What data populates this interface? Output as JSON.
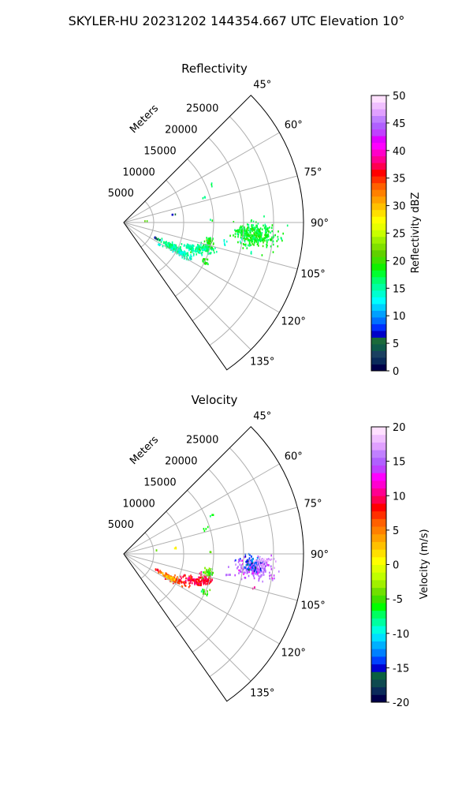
{
  "figure": {
    "suptitle": "SKYLER-HU  20231202  144354.667 UTC Elevation 10°"
  },
  "chart_data": [
    {
      "type": "polar-ppi",
      "title": "Reflectivity",
      "radial_label": "Meters",
      "radial_ticks": [
        "5000",
        "10000",
        "15000",
        "20000",
        "25000"
      ],
      "radial_tick_values": [
        5000,
        10000,
        15000,
        20000,
        25000
      ],
      "rmax": 30000,
      "theta_range_deg": [
        45,
        145
      ],
      "theta_ticks": [
        "45°",
        "60°",
        "75°",
        "90°",
        "105°",
        "120°",
        "135°"
      ],
      "theta_tick_values": [
        45,
        60,
        75,
        90,
        105,
        120,
        135
      ],
      "grid": true,
      "colorbar": {
        "label": "Reflectivity dBZ",
        "min": 0,
        "max": 50,
        "ticks": [
          0,
          5,
          10,
          15,
          20,
          25,
          30,
          35,
          40,
          45,
          50
        ],
        "tick_labels": [
          "0",
          "5",
          "10",
          "15",
          "20",
          "25",
          "30",
          "35",
          "40",
          "45",
          "50"
        ],
        "colors": [
          "#00004a",
          "#0a2a5a",
          "#1a4060",
          "#0e5a4a",
          "#1a6a3a",
          "#0000c8",
          "#0030ff",
          "#0070ff",
          "#00a0ff",
          "#00d0ff",
          "#00ffff",
          "#00ffd0",
          "#00ffa0",
          "#00ff70",
          "#00ff30",
          "#10f000",
          "#40e000",
          "#60d000",
          "#80e000",
          "#a0f000",
          "#c8ff00",
          "#e8ff00",
          "#ffff00",
          "#ffe000",
          "#ffc000",
          "#ffa000",
          "#ff8000",
          "#ff6000",
          "#ff3000",
          "#ff0000",
          "#ff0050",
          "#ff0090",
          "#ff00c8",
          "#ff00ff",
          "#e000ff",
          "#c040ff",
          "#b060ff",
          "#c080ff",
          "#e0a0ff",
          "#f0c0ff",
          "#ffe0ff"
        ]
      },
      "echoes": [
        {
          "theta": 95,
          "r": 22000,
          "spread_r": 1700,
          "spread_t": 2.4,
          "count": 340,
          "value": 18
        },
        {
          "theta": 94,
          "r": 19500,
          "spread_r": 600,
          "spread_t": 1.0,
          "count": 25,
          "value": 18
        },
        {
          "theta": 116,
          "r": 9000,
          "spread_r": 1100,
          "spread_t": 1.7,
          "count": 150,
          "value": 16
        },
        {
          "theta": 118,
          "r": 11000,
          "spread_r": 800,
          "spread_t": 1.2,
          "count": 70,
          "value": 14
        },
        {
          "theta": 110,
          "r": 12200,
          "spread_r": 900,
          "spread_t": 1.4,
          "count": 90,
          "value": 15
        },
        {
          "theta": 107,
          "r": 14200,
          "spread_r": 700,
          "spread_t": 1.3,
          "count": 75,
          "value": 16
        },
        {
          "theta": 102,
          "r": 14500,
          "spread_r": 400,
          "spread_t": 1.6,
          "count": 45,
          "value": 19
        },
        {
          "theta": 115,
          "r": 14800,
          "spread_r": 300,
          "spread_t": 0.8,
          "count": 18,
          "value": 19
        },
        {
          "theta": 101,
          "r": 17000,
          "spread_r": 300,
          "spread_t": 0.6,
          "count": 6,
          "value": 14
        },
        {
          "theta": 98,
          "r": 19700,
          "spread_r": 250,
          "spread_t": 0.5,
          "count": 5,
          "value": 14
        },
        {
          "theta": 115,
          "r": 6000,
          "spread_r": 250,
          "spread_t": 0.6,
          "count": 8,
          "value": 6
        },
        {
          "theta": 120,
          "r": 7000,
          "spread_r": 250,
          "spread_t": 0.6,
          "count": 5,
          "value": 15
        },
        {
          "theta": 72,
          "r": 14200,
          "spread_r": 300,
          "spread_t": 0.5,
          "count": 4,
          "value": 16
        },
        {
          "theta": 66,
          "r": 16000,
          "spread_r": 200,
          "spread_t": 0.4,
          "count": 3,
          "value": 16
        },
        {
          "theta": 80,
          "r": 8500,
          "spread_r": 200,
          "spread_t": 0.4,
          "count": 3,
          "value": 6
        },
        {
          "theta": 84,
          "r": 3800,
          "spread_r": 150,
          "spread_t": 0.4,
          "count": 2,
          "value": 20
        },
        {
          "theta": 88,
          "r": 14500,
          "spread_r": 200,
          "spread_t": 0.4,
          "count": 2,
          "value": 18
        },
        {
          "theta": 103,
          "r": 22000,
          "spread_r": 200,
          "spread_t": 0.4,
          "count": 3,
          "value": 14
        }
      ]
    },
    {
      "type": "polar-ppi",
      "title": "Velocity",
      "radial_label": "Meters",
      "radial_ticks": [
        "5000",
        "10000",
        "15000",
        "20000",
        "25000"
      ],
      "radial_tick_values": [
        5000,
        10000,
        15000,
        20000,
        25000
      ],
      "rmax": 30000,
      "theta_range_deg": [
        45,
        145
      ],
      "theta_ticks": [
        "45°",
        "60°",
        "75°",
        "90°",
        "105°",
        "120°",
        "135°"
      ],
      "theta_tick_values": [
        45,
        60,
        75,
        90,
        105,
        120,
        135
      ],
      "grid": true,
      "colorbar": {
        "label": "Velocity (m/s)",
        "min": -20,
        "max": 20,
        "ticks": [
          -20,
          -15,
          -10,
          -5,
          0,
          5,
          10,
          15,
          20
        ],
        "tick_labels": [
          "-20",
          "-15",
          "-10",
          "-5",
          "0",
          "5",
          "10",
          "15",
          "20"
        ],
        "colors": [
          "#00004a",
          "#0a2a5a",
          "#0e4a50",
          "#0a6040",
          "#0000d0",
          "#0040ff",
          "#0080ff",
          "#00b0ff",
          "#00e0ff",
          "#00ffe0",
          "#00ffa0",
          "#00ff60",
          "#00ff00",
          "#40e000",
          "#70e000",
          "#a0f000",
          "#c0ff00",
          "#e0ff00",
          "#ffff00",
          "#ffe000",
          "#ffc000",
          "#ffa000",
          "#ff8000",
          "#ff6000",
          "#ff3000",
          "#ff0000",
          "#ff0050",
          "#ff0090",
          "#ff00d0",
          "#ff00ff",
          "#c040ff",
          "#b060ff",
          "#c080ff",
          "#e0a0ff",
          "#f0c0ff",
          "#ffe0ff"
        ]
      },
      "echoes": [
        {
          "theta": 96,
          "r": 22000,
          "spread_r": 1500,
          "spread_t": 2.2,
          "count": 200,
          "value": 15
        },
        {
          "theta": 94,
          "r": 21600,
          "spread_r": 800,
          "spread_t": 1.5,
          "count": 90,
          "value": -14
        },
        {
          "theta": 93,
          "r": 22800,
          "spread_r": 800,
          "spread_t": 1.2,
          "count": 50,
          "value": 17
        },
        {
          "theta": 116,
          "r": 9200,
          "spread_r": 1100,
          "spread_t": 1.6,
          "count": 120,
          "value": 7
        },
        {
          "theta": 117,
          "r": 8400,
          "spread_r": 500,
          "spread_t": 1.2,
          "count": 60,
          "value": 3
        },
        {
          "theta": 110,
          "r": 12200,
          "spread_r": 900,
          "spread_t": 1.4,
          "count": 90,
          "value": 9
        },
        {
          "theta": 107,
          "r": 14200,
          "spread_r": 700,
          "spread_t": 1.3,
          "count": 75,
          "value": 9
        },
        {
          "theta": 102,
          "r": 14500,
          "spread_r": 400,
          "spread_t": 1.6,
          "count": 45,
          "value": -5
        },
        {
          "theta": 115,
          "r": 14800,
          "spread_r": 300,
          "spread_t": 0.8,
          "count": 18,
          "value": -5
        },
        {
          "theta": 101,
          "r": 17500,
          "spread_r": 300,
          "spread_t": 0.6,
          "count": 6,
          "value": 15
        },
        {
          "theta": 98,
          "r": 19700,
          "spread_r": 250,
          "spread_t": 0.5,
          "count": 5,
          "value": 15
        },
        {
          "theta": 115,
          "r": 6000,
          "spread_r": 250,
          "spread_t": 0.6,
          "count": 8,
          "value": 10
        },
        {
          "theta": 72,
          "r": 14200,
          "spread_r": 300,
          "spread_t": 0.5,
          "count": 4,
          "value": -6
        },
        {
          "theta": 66,
          "r": 16000,
          "spread_r": 200,
          "spread_t": 0.4,
          "count": 3,
          "value": -6
        },
        {
          "theta": 82,
          "r": 8500,
          "spread_r": 200,
          "spread_t": 0.4,
          "count": 3,
          "value": 2
        },
        {
          "theta": 82,
          "r": 5500,
          "spread_r": 150,
          "spread_t": 0.4,
          "count": 2,
          "value": -4
        },
        {
          "theta": 88,
          "r": 14500,
          "spread_r": 200,
          "spread_t": 0.4,
          "count": 2,
          "value": -6
        },
        {
          "theta": 104,
          "r": 22500,
          "spread_r": 200,
          "spread_t": 0.4,
          "count": 3,
          "value": 11
        }
      ]
    }
  ]
}
